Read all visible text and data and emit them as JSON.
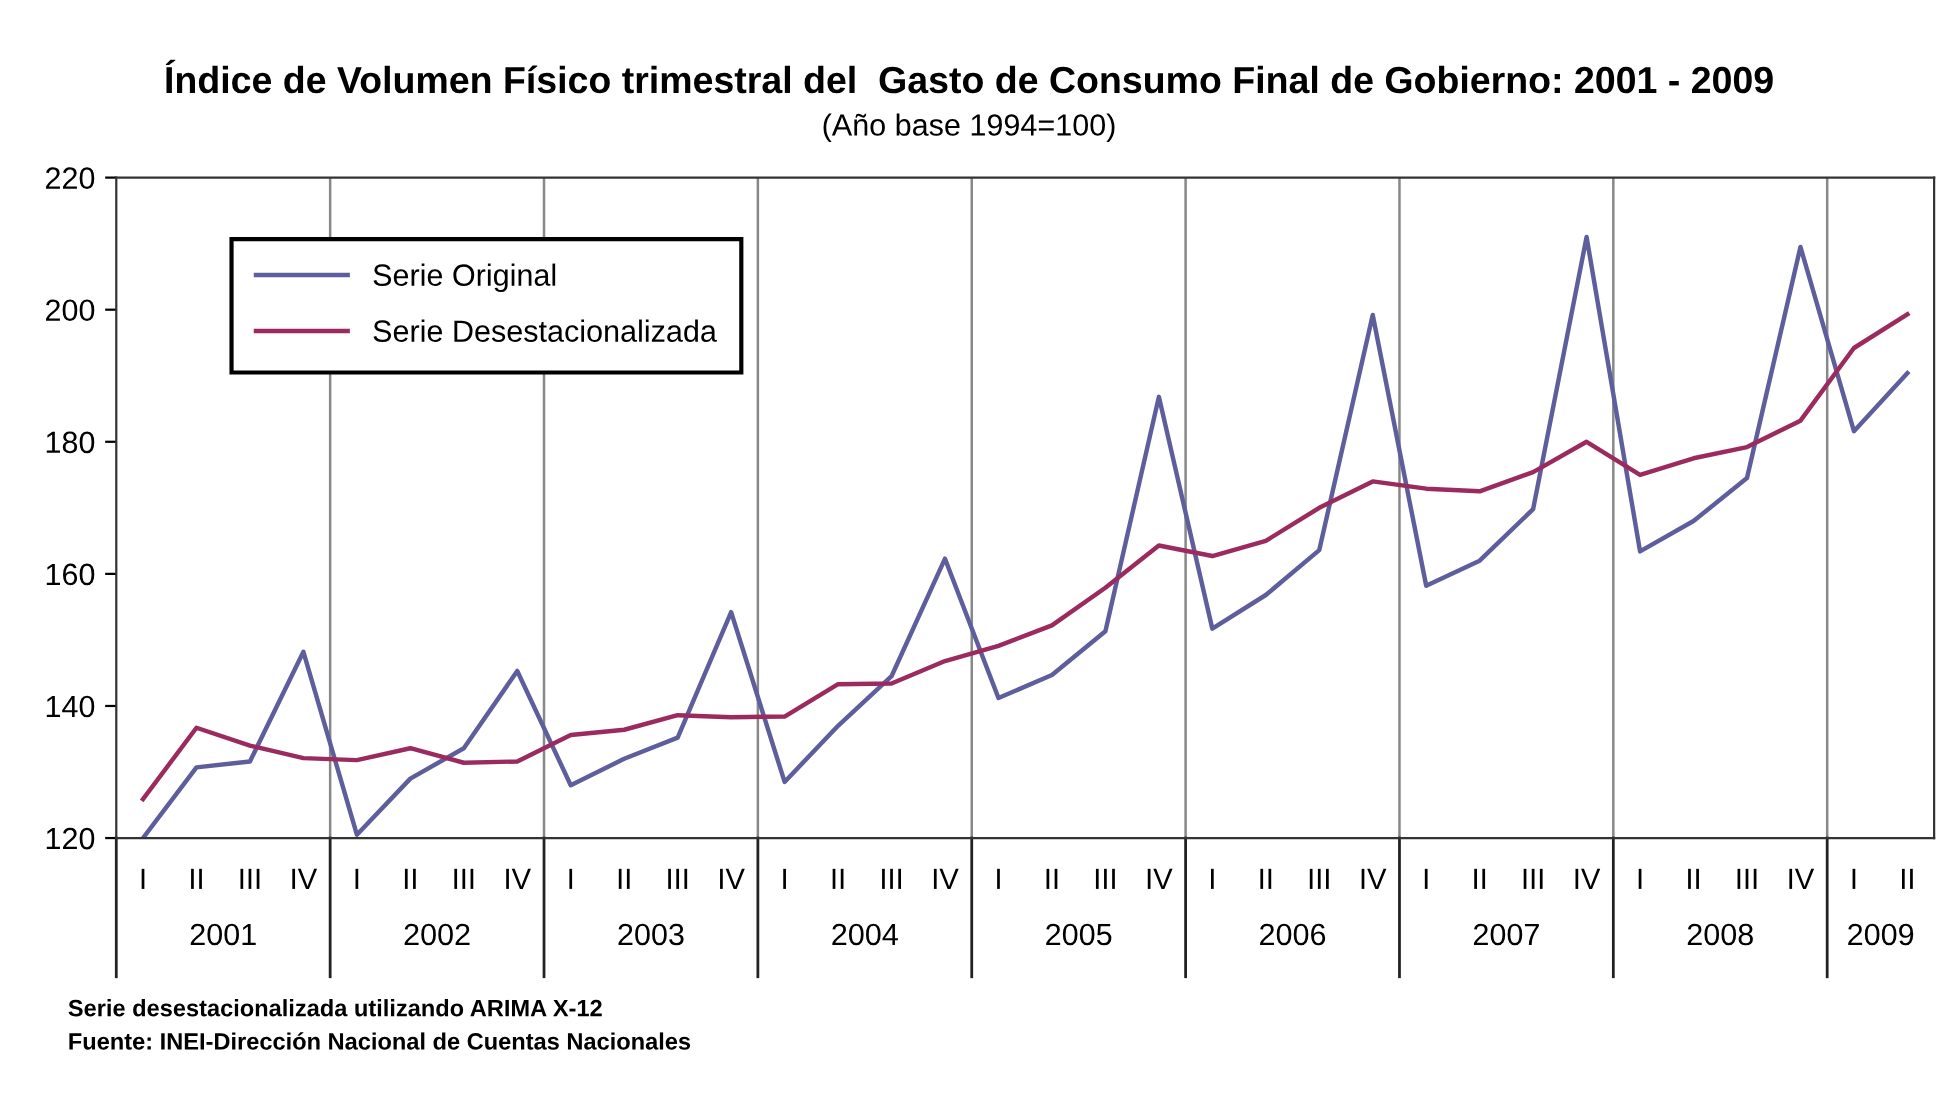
{
  "chart_data": {
    "type": "line",
    "title": "Índice de Volumen Físico trimestral del  Gasto de Consumo Final de Gobierno: 2001 - 2009",
    "subtitle": "(Año base 1994=100)",
    "categories": [
      "I",
      "II",
      "III",
      "IV",
      "I",
      "II",
      "III",
      "IV",
      "I",
      "II",
      "III",
      "IV",
      "I",
      "II",
      "III",
      "IV",
      "I",
      "II",
      "III",
      "IV",
      "I",
      "II",
      "III",
      "IV",
      "I",
      "II",
      "III",
      "IV",
      "I",
      "II",
      "III",
      "IV",
      "I",
      "II"
    ],
    "series": [
      {
        "name": "Serie Original",
        "color": "#5e5e9c",
        "values": [
          120,
          130.7,
          131.6,
          148.2,
          120.5,
          129,
          133.6,
          145.3,
          128,
          132,
          135.2,
          154.2,
          128.5,
          137,
          144.5,
          162.3,
          141.2,
          144.7,
          151.3,
          186.8,
          151.7,
          156.8,
          163.6,
          199.2,
          158.2,
          162,
          169.8,
          211,
          163.4,
          168,
          174.5,
          209.5,
          181.6,
          190.4
        ]
      },
      {
        "name": "Serie Desestacionalizada",
        "color": "#9b2b5e",
        "values": [
          125.9,
          136.7,
          134,
          132.1,
          131.8,
          133.6,
          131.4,
          131.6,
          135.6,
          136.4,
          138.6,
          138.3,
          138.4,
          143.3,
          143.4,
          146.8,
          149.1,
          152.2,
          157.9,
          164.3,
          162.7,
          165,
          170,
          174,
          172.9,
          172.5,
          175.4,
          180,
          175,
          177.5,
          179.2,
          183.2,
          194.2,
          199.3
        ]
      }
    ],
    "ylim": [
      120,
      220
    ],
    "yticks": [
      120,
      140,
      160,
      180,
      200,
      220
    ],
    "grid": "x",
    "legend": "top left",
    "line_style": "solid",
    "marker": "none",
    "annotations": [
      "2001",
      "2002",
      "2003",
      "2004",
      "2005",
      "2006",
      "2007",
      "2008",
      "2009",
      "Serie desestacionalizada utilizando ARIMA X-12",
      "Fuente: INEI-Dirección Nacional de Cuentas Nacionales"
    ]
  }
}
